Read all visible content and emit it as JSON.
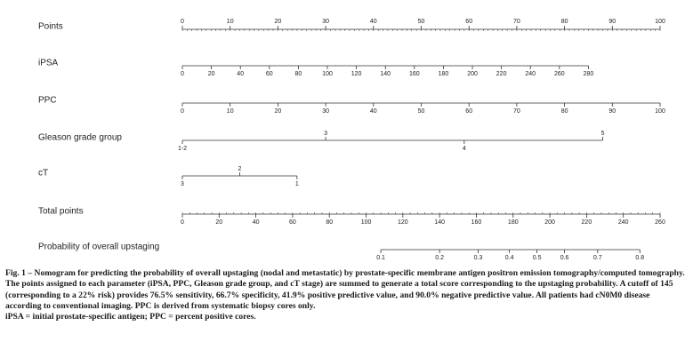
{
  "chart_data": {
    "type": "nomogram",
    "title": "",
    "rows": [
      {
        "label": "Points",
        "scale_min": 0,
        "scale_max": 100,
        "ticks": [
          0,
          10,
          20,
          30,
          40,
          50,
          60,
          70,
          80,
          90,
          100
        ],
        "minor_step": 1,
        "labels_above": true
      },
      {
        "label": "iPSA",
        "scale_min": 0,
        "scale_max": 280,
        "points_min": 0,
        "points_max": 85,
        "ticks": [
          0,
          20,
          40,
          60,
          80,
          100,
          120,
          140,
          160,
          180,
          200,
          220,
          240,
          260,
          280
        ],
        "minor_step": 0
      },
      {
        "label": "PPC",
        "scale_min": 0,
        "scale_max": 100,
        "points_min": 0,
        "points_max": 100,
        "ticks": [
          0,
          10,
          20,
          30,
          40,
          50,
          60,
          70,
          80,
          90,
          100
        ],
        "minor_step": 0
      },
      {
        "label": "Gleason grade group",
        "type": "categorical",
        "points_min": 0,
        "points_max": 88,
        "categories": [
          {
            "label": "1-2",
            "points": 0,
            "position": "below"
          },
          {
            "label": "3",
            "points": 30,
            "position": "above"
          },
          {
            "label": "4",
            "points": 59,
            "position": "below"
          },
          {
            "label": "5",
            "points": 88,
            "position": "above"
          }
        ]
      },
      {
        "label": "cT",
        "type": "categorical",
        "points_min": 0,
        "points_max": 24,
        "categories": [
          {
            "label": "3",
            "points": 0,
            "position": "below"
          },
          {
            "label": "2",
            "points": 12,
            "position": "above"
          },
          {
            "label": "1",
            "points": 24,
            "position": "below"
          }
        ]
      },
      {
        "label": "Total points",
        "scale_min": 0,
        "scale_max": 260,
        "ticks": [
          0,
          20,
          40,
          60,
          80,
          100,
          120,
          140,
          160,
          180,
          200,
          220,
          240,
          260
        ],
        "minor_step": 4
      },
      {
        "label": "Probability of overall upstaging",
        "type": "probability",
        "ticks": [
          {
            "label": "0.1",
            "total_points": 108
          },
          {
            "label": "0.2",
            "total_points": 140
          },
          {
            "label": "0.3",
            "total_points": 161
          },
          {
            "label": "0.4",
            "total_points": 178
          },
          {
            "label": "0.5",
            "total_points": 193
          },
          {
            "label": "0.6",
            "total_points": 208
          },
          {
            "label": "0.7",
            "total_points": 226
          },
          {
            "label": "0.8",
            "total_points": 249
          }
        ]
      }
    ]
  },
  "caption": {
    "heading": "Fig. 1 – Nomogram for predicting the probability of overall upstaging (nodal and metastatic) by prostate-specific membrane antigen positron emission tomography/computed tomography. The points assigned to each parameter (iPSA, PPC, Gleason grade group, and cT stage) are summed to generate a total score corresponding to the upstaging probability. A cutoff of 145 (corresponding to a 22% risk) provides 76.5% sensitivity, 66.7% specificity, 41.9% positive predictive value, and 90.0% negative predictive value. All patients had cN0M0 disease according to conventional imaging. PPC is derived from systematic biopsy cores only.",
    "abbreviations": "iPSA = initial prostate-specific antigen; PPC = percent positive cores."
  }
}
